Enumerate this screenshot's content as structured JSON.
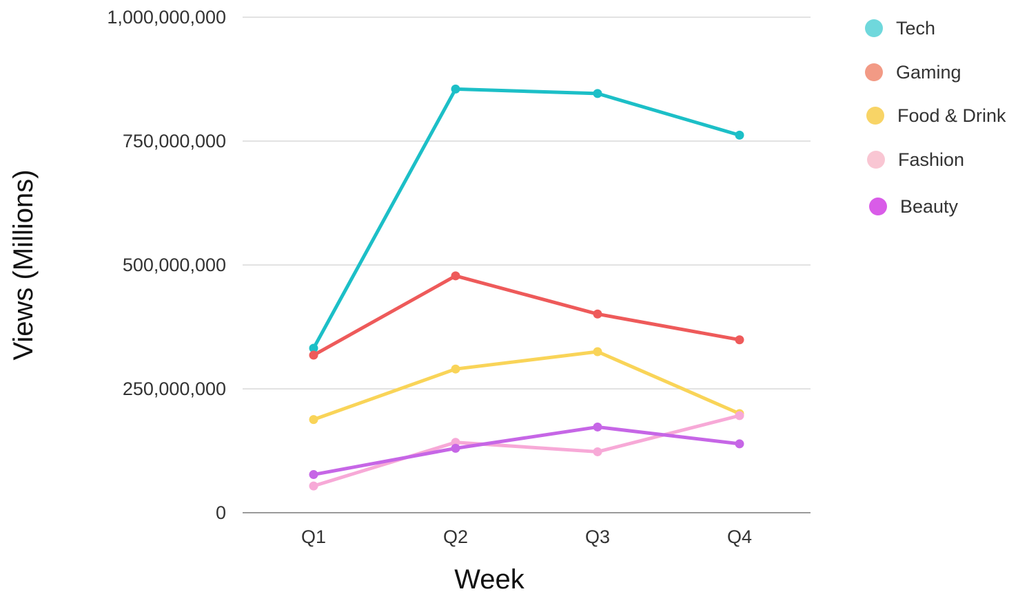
{
  "chart_data": {
    "type": "line",
    "title": "",
    "xlabel": "Week",
    "ylabel": "Views (Millions)",
    "categories": [
      "Q1",
      "Q2",
      "Q3",
      "Q4"
    ],
    "ylim": [
      0,
      1000000000
    ],
    "yticks": [
      0,
      250000000,
      500000000,
      750000000,
      1000000000
    ],
    "ytick_labels": [
      "0",
      "250,000,000",
      "500,000,000",
      "750,000,000",
      "1,000,000,000"
    ],
    "grid": true,
    "legend_position": "top-right",
    "series": [
      {
        "name": "Tech",
        "color": "#1cbfc7",
        "legend_color": "#6fd8dc",
        "values": [
          332000000,
          855000000,
          846000000,
          762000000
        ]
      },
      {
        "name": "Gaming",
        "color": "#ee5a5a",
        "legend_color": "#f29a85",
        "values": [
          318000000,
          478000000,
          401000000,
          349000000
        ]
      },
      {
        "name": "Food & Drink",
        "color": "#f9d458",
        "legend_color": "#f8d466",
        "values": [
          188000000,
          290000000,
          325000000,
          200000000
        ]
      },
      {
        "name": "Fashion",
        "color": "#f7a9d7",
        "legend_color": "#f9c6d3",
        "values": [
          54000000,
          142000000,
          123000000,
          196000000
        ]
      },
      {
        "name": "Beauty",
        "color": "#c666e6",
        "legend_color": "#d95ce8",
        "values": [
          77000000,
          130000000,
          173000000,
          139000000
        ]
      }
    ]
  }
}
